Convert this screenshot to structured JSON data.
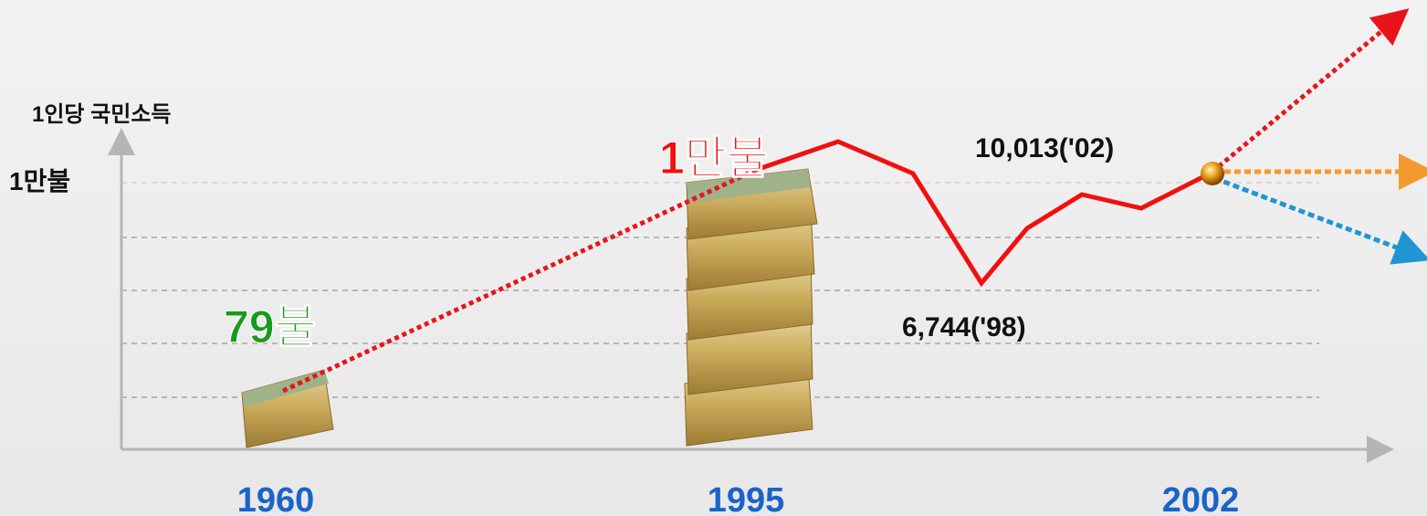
{
  "axis": {
    "y_label": "1인당 국민소득",
    "y_level": "1만불",
    "x_labels": [
      "1960",
      "1995",
      "2002"
    ]
  },
  "callouts": {
    "start": "79불",
    "milestone": "1만불",
    "low": "6,744('98)",
    "latest": "10,013('02)"
  }
}
